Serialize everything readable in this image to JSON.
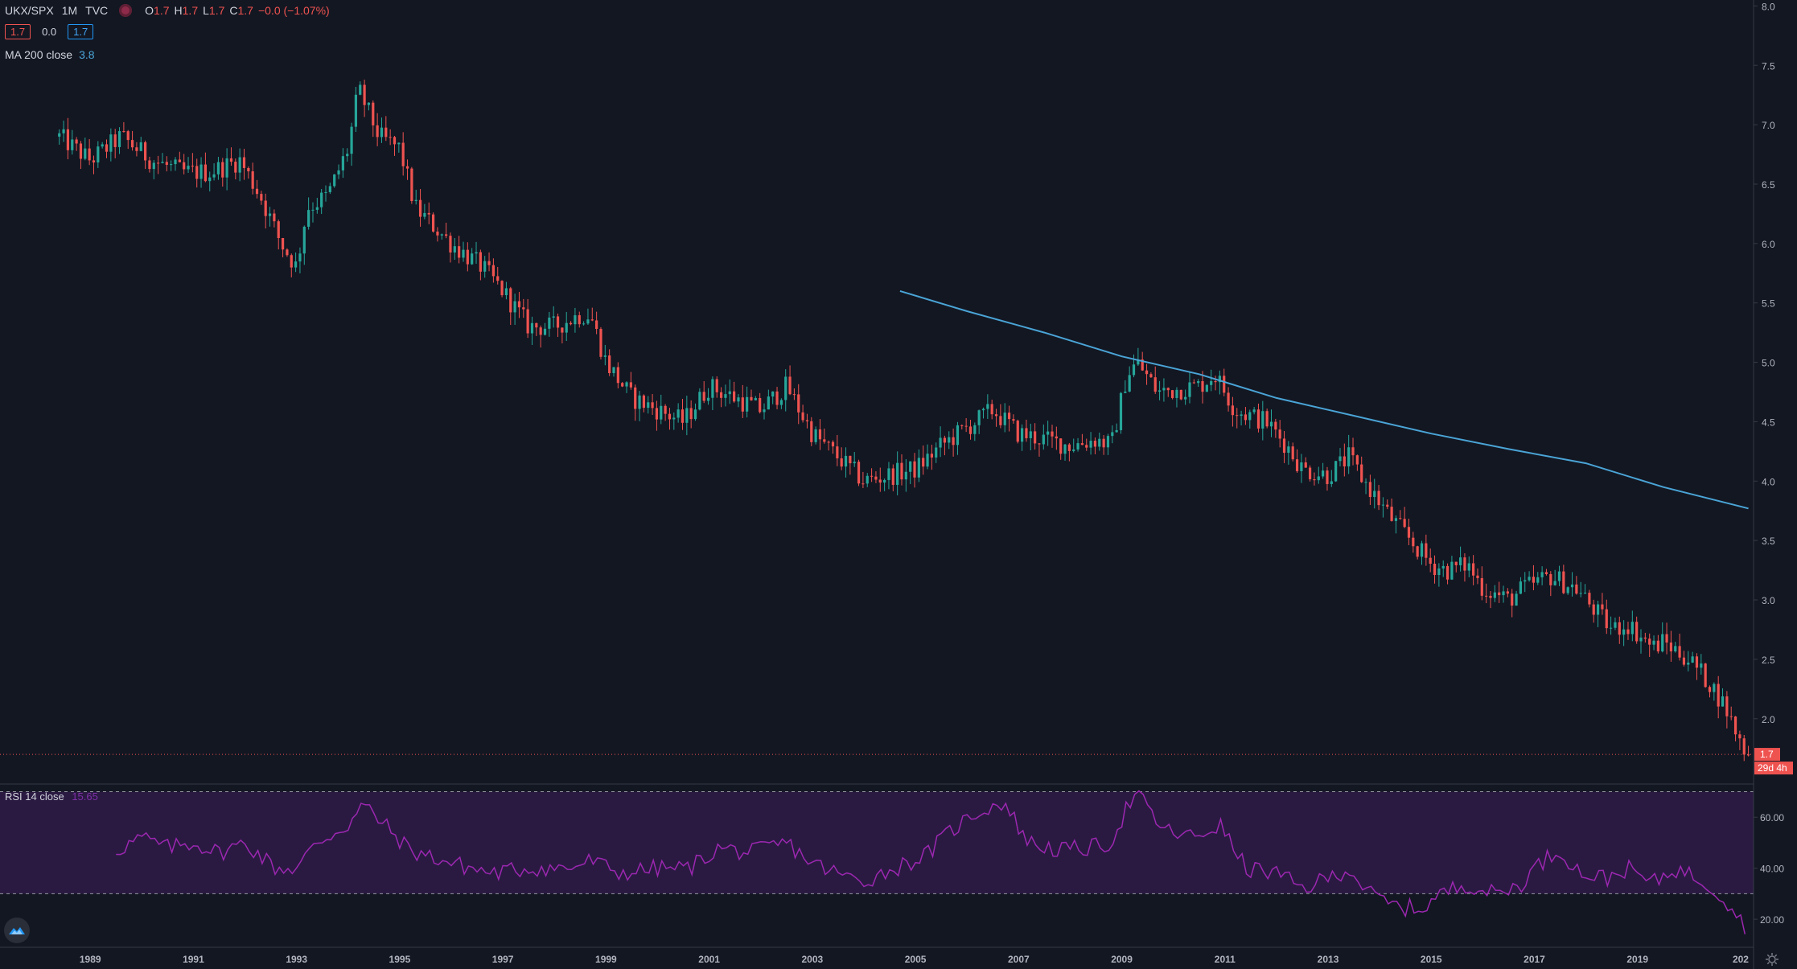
{
  "legend": {
    "symbol": "UKX/SPX",
    "interval": "1M",
    "exchange": "TVC",
    "open_key": "O",
    "open": "1.7",
    "high_key": "H",
    "high": "1.7",
    "low_key": "L",
    "low": "1.7",
    "close_key": "C",
    "close": "1.7",
    "change": "−0.0 (−1.07%)",
    "bid": "1.7",
    "spread": "0.0",
    "ask": "1.7",
    "ma_label": "MA 200 close",
    "ma_value": "3.8"
  },
  "rsi": {
    "label": "RSI 14 close",
    "value": "15.65"
  },
  "price_tag": {
    "value": "1.7",
    "countdown": "29d 4h"
  },
  "colors": {
    "background": "#131722",
    "up": "#26a69a",
    "down": "#ef5350",
    "ma": "#4aa4d6",
    "rsi_line": "#9c27b0",
    "rsi_band": "#2a1a42"
  },
  "icons": {
    "logo": "tradingview-cloud-icon",
    "settings": "gear-icon"
  },
  "chart_data": [
    {
      "type": "candlestick",
      "title": "UKX/SPX 1M TVC",
      "y_ticks": [
        2.0,
        2.5,
        3.0,
        3.5,
        4.0,
        4.5,
        5.0,
        5.5,
        6.0,
        6.5,
        7.0,
        7.5,
        8.0
      ],
      "x_ticks": [
        "1989",
        "1991",
        "1993",
        "1995",
        "1997",
        "1999",
        "2001",
        "2003",
        "2005",
        "2007",
        "2009",
        "2011",
        "2013",
        "2015",
        "2017",
        "2019",
        "202"
      ],
      "xlim": [
        1987.25,
        2021.25
      ],
      "ylim": [
        1.45,
        8.05
      ],
      "grid": false,
      "price_anchors": [
        {
          "x": 1988.4,
          "y": 6.9
        },
        {
          "x": 1989.0,
          "y": 6.7
        },
        {
          "x": 1989.6,
          "y": 6.9
        },
        {
          "x": 1990.2,
          "y": 6.7
        },
        {
          "x": 1990.8,
          "y": 6.6
        },
        {
          "x": 1991.3,
          "y": 6.6
        },
        {
          "x": 1991.9,
          "y": 6.7
        },
        {
          "x": 1992.3,
          "y": 6.4
        },
        {
          "x": 1992.7,
          "y": 6.0
        },
        {
          "x": 1993.0,
          "y": 5.8
        },
        {
          "x": 1993.2,
          "y": 6.3
        },
        {
          "x": 1993.6,
          "y": 6.4
        },
        {
          "x": 1994.0,
          "y": 6.8
        },
        {
          "x": 1994.2,
          "y": 7.3
        },
        {
          "x": 1994.6,
          "y": 6.9
        },
        {
          "x": 1995.0,
          "y": 6.8
        },
        {
          "x": 1995.3,
          "y": 6.3
        },
        {
          "x": 1996.0,
          "y": 6.0
        },
        {
          "x": 1996.6,
          "y": 5.8
        },
        {
          "x": 1997.0,
          "y": 5.6
        },
        {
          "x": 1997.5,
          "y": 5.3
        },
        {
          "x": 1998.0,
          "y": 5.3
        },
        {
          "x": 1998.5,
          "y": 5.4
        },
        {
          "x": 1998.7,
          "y": 5.4
        },
        {
          "x": 1999.0,
          "y": 5.0
        },
        {
          "x": 1999.5,
          "y": 4.7
        },
        {
          "x": 2000.0,
          "y": 4.6
        },
        {
          "x": 2000.5,
          "y": 4.5
        },
        {
          "x": 2001.0,
          "y": 4.8
        },
        {
          "x": 2001.5,
          "y": 4.7
        },
        {
          "x": 2002.0,
          "y": 4.6
        },
        {
          "x": 2002.5,
          "y": 4.8
        },
        {
          "x": 2003.0,
          "y": 4.4
        },
        {
          "x": 2003.5,
          "y": 4.2
        },
        {
          "x": 2004.0,
          "y": 4.0
        },
        {
          "x": 2004.5,
          "y": 4.05
        },
        {
          "x": 2005.0,
          "y": 4.1
        },
        {
          "x": 2005.5,
          "y": 4.3
        },
        {
          "x": 2006.0,
          "y": 4.45
        },
        {
          "x": 2006.5,
          "y": 4.6
        },
        {
          "x": 2007.0,
          "y": 4.4
        },
        {
          "x": 2007.5,
          "y": 4.35
        },
        {
          "x": 2008.0,
          "y": 4.3
        },
        {
          "x": 2008.5,
          "y": 4.35
        },
        {
          "x": 2008.8,
          "y": 4.3
        },
        {
          "x": 2009.1,
          "y": 4.9
        },
        {
          "x": 2009.3,
          "y": 5.0
        },
        {
          "x": 2009.7,
          "y": 4.75
        },
        {
          "x": 2010.5,
          "y": 4.8
        },
        {
          "x": 2010.8,
          "y": 4.9
        },
        {
          "x": 2011.2,
          "y": 4.6
        },
        {
          "x": 2011.8,
          "y": 4.5
        },
        {
          "x": 2012.2,
          "y": 4.3
        },
        {
          "x": 2012.5,
          "y": 4.1
        },
        {
          "x": 2013.0,
          "y": 4.05
        },
        {
          "x": 2013.4,
          "y": 4.2
        },
        {
          "x": 2013.7,
          "y": 4.0
        },
        {
          "x": 2014.2,
          "y": 3.7
        },
        {
          "x": 2014.6,
          "y": 3.5
        },
        {
          "x": 2015.0,
          "y": 3.3
        },
        {
          "x": 2015.3,
          "y": 3.25
        },
        {
          "x": 2015.7,
          "y": 3.3
        },
        {
          "x": 2016.0,
          "y": 3.1
        },
        {
          "x": 2016.5,
          "y": 3.0
        },
        {
          "x": 2016.8,
          "y": 3.1
        },
        {
          "x": 2017.3,
          "y": 3.2
        },
        {
          "x": 2017.8,
          "y": 3.1
        },
        {
          "x": 2018.2,
          "y": 2.9
        },
        {
          "x": 2018.5,
          "y": 2.75
        },
        {
          "x": 2018.8,
          "y": 2.8
        },
        {
          "x": 2019.3,
          "y": 2.6
        },
        {
          "x": 2019.5,
          "y": 2.65
        },
        {
          "x": 2020.0,
          "y": 2.5
        },
        {
          "x": 2020.4,
          "y": 2.3
        },
        {
          "x": 2020.7,
          "y": 2.1
        },
        {
          "x": 2021.0,
          "y": 1.8
        },
        {
          "x": 2021.15,
          "y": 1.7
        }
      ],
      "moving_average": {
        "name": "MA 200 close",
        "points": [
          {
            "x": 2004.7,
            "y": 5.6
          },
          {
            "x": 2006.0,
            "y": 5.43
          },
          {
            "x": 2007.5,
            "y": 5.25
          },
          {
            "x": 2009.0,
            "y": 5.05
          },
          {
            "x": 2010.5,
            "y": 4.9
          },
          {
            "x": 2012.0,
            "y": 4.7
          },
          {
            "x": 2013.5,
            "y": 4.55
          },
          {
            "x": 2015.0,
            "y": 4.4
          },
          {
            "x": 2016.5,
            "y": 4.27
          },
          {
            "x": 2018.0,
            "y": 4.15
          },
          {
            "x": 2019.5,
            "y": 3.95
          },
          {
            "x": 2021.15,
            "y": 3.77
          }
        ]
      }
    },
    {
      "type": "line",
      "title": "RSI 14 close",
      "y_ticks": [
        20,
        40,
        60
      ],
      "ylim": [
        9,
        73
      ],
      "band": [
        30,
        70
      ],
      "points": [
        {
          "x": 1989.5,
          "y": 47
        },
        {
          "x": 1990.0,
          "y": 52
        },
        {
          "x": 1990.5,
          "y": 48
        },
        {
          "x": 1991.0,
          "y": 50
        },
        {
          "x": 1991.5,
          "y": 46
        },
        {
          "x": 1992.0,
          "y": 50
        },
        {
          "x": 1992.6,
          "y": 40
        },
        {
          "x": 1993.0,
          "y": 40
        },
        {
          "x": 1993.4,
          "y": 50
        },
        {
          "x": 1994.0,
          "y": 57
        },
        {
          "x": 1994.3,
          "y": 65
        },
        {
          "x": 1994.8,
          "y": 55
        },
        {
          "x": 1995.2,
          "y": 47
        },
        {
          "x": 1996.0,
          "y": 42
        },
        {
          "x": 1996.8,
          "y": 38
        },
        {
          "x": 1997.5,
          "y": 40
        },
        {
          "x": 1998.3,
          "y": 40
        },
        {
          "x": 1998.7,
          "y": 43
        },
        {
          "x": 1999.3,
          "y": 38
        },
        {
          "x": 2000.0,
          "y": 40
        },
        {
          "x": 2000.6,
          "y": 40
        },
        {
          "x": 2001.2,
          "y": 48
        },
        {
          "x": 2001.8,
          "y": 46
        },
        {
          "x": 2002.5,
          "y": 50
        },
        {
          "x": 2003.0,
          "y": 42
        },
        {
          "x": 2003.6,
          "y": 37
        },
        {
          "x": 2004.0,
          "y": 35
        },
        {
          "x": 2004.6,
          "y": 40
        },
        {
          "x": 2005.2,
          "y": 45
        },
        {
          "x": 2005.7,
          "y": 55
        },
        {
          "x": 2006.2,
          "y": 62
        },
        {
          "x": 2006.7,
          "y": 66
        },
        {
          "x": 2007.2,
          "y": 50
        },
        {
          "x": 2007.8,
          "y": 47
        },
        {
          "x": 2008.4,
          "y": 48
        },
        {
          "x": 2008.8,
          "y": 50
        },
        {
          "x": 2009.1,
          "y": 64
        },
        {
          "x": 2009.3,
          "y": 69
        },
        {
          "x": 2009.8,
          "y": 55
        },
        {
          "x": 2010.4,
          "y": 52
        },
        {
          "x": 2010.9,
          "y": 57
        },
        {
          "x": 2011.4,
          "y": 40
        },
        {
          "x": 2012.0,
          "y": 38
        },
        {
          "x": 2012.5,
          "y": 32
        },
        {
          "x": 2013.0,
          "y": 36
        },
        {
          "x": 2013.4,
          "y": 40
        },
        {
          "x": 2013.8,
          "y": 30
        },
        {
          "x": 2014.3,
          "y": 25
        },
        {
          "x": 2014.8,
          "y": 24
        },
        {
          "x": 2015.2,
          "y": 30
        },
        {
          "x": 2015.7,
          "y": 34
        },
        {
          "x": 2016.2,
          "y": 30
        },
        {
          "x": 2016.7,
          "y": 33
        },
        {
          "x": 2017.1,
          "y": 42
        },
        {
          "x": 2017.5,
          "y": 47
        },
        {
          "x": 2017.9,
          "y": 38
        },
        {
          "x": 2018.4,
          "y": 36
        },
        {
          "x": 2018.8,
          "y": 40
        },
        {
          "x": 2019.3,
          "y": 34
        },
        {
          "x": 2019.7,
          "y": 40
        },
        {
          "x": 2020.2,
          "y": 36
        },
        {
          "x": 2020.6,
          "y": 30
        },
        {
          "x": 2020.9,
          "y": 23
        },
        {
          "x": 2021.15,
          "y": 15.65
        }
      ]
    }
  ]
}
